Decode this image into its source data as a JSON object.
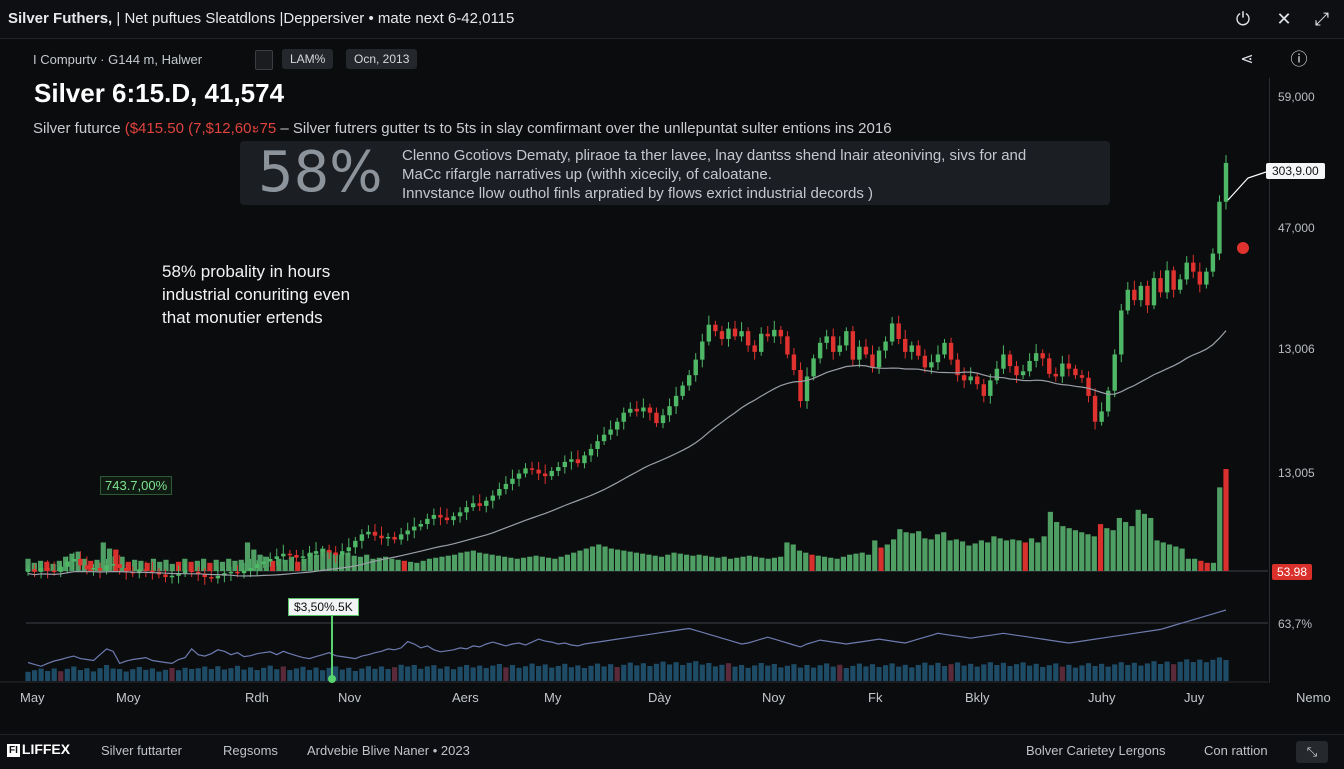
{
  "window": {
    "title_bold": "Silver Futhers,",
    "title_rest": "| Net puftues Sleatdlons  |Deppersiver • mate next 6-42,0115",
    "icons": [
      "power-icon",
      "close-icon",
      "maximize-icon"
    ]
  },
  "toolbar": {
    "left_text": "I Compurtv · G144 m, Halwer",
    "chip1": "LAM%",
    "chip2": "Ocn, 2013",
    "icons": [
      "share-icon",
      "info-icon"
    ]
  },
  "header": {
    "headline": "Silver 6:15.D, 41,574",
    "sub_prefix": "Silver futurce",
    "sub_red": "($415.50 (7,$12,60ะ75",
    "sub_suffix": "– Silver futrers gutter ts to 5ts in slay comfirmant over the unllepuntat sulter entions ins 2016"
  },
  "banner": {
    "percent": "58%",
    "line1": "Clenno Gcotiovs Dematy, pliraoe ta ther lavee, lnay dantss shend lnair ateoniving, sivs for and",
    "line2": "MaCc rifargle narratives up (withh xicecily, of caloatane.",
    "line3": "Innvstance llow outhol finls arpratied by flows exrict industrial decords )"
  },
  "annotation": {
    "line1": "58% probality in hours",
    "line2": "industrial conuriting even",
    "line3": "that monutier ertends"
  },
  "labels": {
    "price_tag": "303,9.00",
    "red_tag": "53.98",
    "green_label": "743.7,00%",
    "volume_label": "$3,50%.5K"
  },
  "footer": {
    "logo_box": "FI",
    "logo_text": "LIFFEX",
    "item1": "Silver futtarter",
    "item2": "Regsoms",
    "item3": "Ardvebie Blive Naner • 2023",
    "right1": "Bolver Carietey Lergons",
    "right2": "Con rattion",
    "button_icon": "chart-toggle-icon",
    "button_glyph": "⤡"
  },
  "chart_data": {
    "type": "candlestick",
    "colors": {
      "up": "#4fb867",
      "down": "#e0322f",
      "ma": "#9aa0a8",
      "volume_up": "#4f9e63",
      "volume_down": "#d8302c",
      "lower_bars": "#1e4c66"
    },
    "y_tick_labels": [
      "59,000",
      "47,000",
      "13,006",
      "13,005",
      "63,7%"
    ],
    "x_tick_labels": [
      "May",
      "Moy",
      "Rdh",
      "Nov",
      "Aers",
      "My",
      "Dày",
      "Noy",
      "Fk",
      "Bkly",
      "Juhy",
      "Juy",
      "Nemo"
    ],
    "close_series": [
      46,
      44,
      47,
      45,
      44,
      48,
      52,
      54,
      49,
      46,
      47,
      45,
      49,
      50,
      47,
      44,
      43,
      46,
      45,
      44,
      42,
      40,
      41,
      43,
      45,
      44,
      42,
      40,
      39,
      41,
      43,
      44,
      43,
      45,
      47,
      50,
      52,
      54,
      56,
      58,
      57,
      55,
      56,
      58,
      60,
      61,
      59,
      57,
      60,
      63,
      68,
      73,
      75,
      72,
      70,
      71,
      69,
      73,
      76,
      79,
      81,
      85,
      88,
      86,
      84,
      87,
      90,
      94,
      97,
      95,
      99,
      103,
      108,
      112,
      116,
      120,
      124,
      123,
      120,
      118,
      122,
      125,
      129,
      131,
      128,
      134,
      139,
      145,
      150,
      154,
      160,
      167,
      170,
      168,
      171,
      167,
      159,
      165,
      172,
      180,
      188,
      196,
      208,
      222,
      235,
      230,
      224,
      232,
      226,
      230,
      219,
      214,
      228,
      226,
      231,
      226,
      212,
      200,
      176,
      195,
      209,
      221,
      226,
      214,
      219,
      230,
      208,
      218,
      212,
      202,
      215,
      222,
      236,
      224,
      214,
      219,
      211,
      202,
      206,
      212,
      221,
      208,
      196,
      192,
      195,
      189,
      180,
      192,
      201,
      212,
      203,
      196,
      199,
      207,
      213,
      209,
      197,
      195,
      205,
      201,
      196,
      194,
      180,
      160,
      168,
      184,
      212,
      246,
      262,
      254,
      265,
      250,
      271,
      260,
      277,
      262,
      270,
      283,
      276,
      266,
      276,
      290,
      330,
      360
    ],
    "volume_series": [
      32,
      28,
      24,
      30,
      35,
      38,
      42,
      45,
      40,
      38,
      36,
      48,
      60,
      55,
      30,
      35,
      38,
      40,
      42,
      36,
      34,
      32,
      30,
      38,
      42,
      60,
      48,
      45,
      50,
      58,
      55,
      48,
      52,
      44,
      46,
      50,
      52,
      54,
      48,
      55,
      50,
      46,
      42,
      40,
      44,
      48,
      52,
      46,
      44,
      42,
      40,
      45,
      48,
      52,
      55,
      60,
      58,
      62,
      75,
      70,
      62,
      66,
      58,
      54,
      56,
      58,
      62,
      60,
      66,
      64,
      70,
      74,
      70,
      66,
      70,
      72,
      68,
      74,
      80,
      76,
      74,
      70,
      72,
      68,
      66,
      70,
      72,
      74,
      76,
      78,
      80,
      82,
      84,
      86,
      88,
      90,
      92,
      94,
      96,
      98,
      100,
      102,
      98,
      94,
      90,
      86,
      82,
      78,
      74,
      70,
      72,
      76,
      80,
      84,
      80,
      76,
      72,
      68,
      64,
      70,
      74,
      78,
      76,
      74,
      72,
      70,
      72,
      74,
      76,
      78,
      80,
      78,
      76,
      74,
      72,
      76,
      80,
      84,
      88,
      92,
      90,
      88,
      86,
      84,
      82,
      84,
      86,
      88,
      90,
      92,
      90,
      88,
      86,
      84,
      82,
      80,
      78,
      76,
      74,
      72,
      74,
      76,
      78,
      80,
      82,
      84,
      86,
      88,
      90,
      92,
      94,
      96,
      98,
      100,
      104,
      108,
      112,
      116,
      120,
      124,
      128,
      132,
      136,
      140
    ],
    "volume_bars": [
      {
        "v": 12,
        "up": true
      },
      {
        "v": 8,
        "up": true
      },
      {
        "v": 10,
        "up": true
      },
      {
        "v": 9,
        "up": false
      },
      {
        "v": 7,
        "up": true
      },
      {
        "v": 10,
        "up": true
      },
      {
        "v": 14,
        "up": true
      },
      {
        "v": 17,
        "up": true
      },
      {
        "v": 19,
        "up": true
      },
      {
        "v": 12,
        "up": true
      },
      {
        "v": 10,
        "up": false
      },
      {
        "v": 11,
        "up": true
      },
      {
        "v": 28,
        "up": true
      },
      {
        "v": 22,
        "up": true
      },
      {
        "v": 21,
        "up": false
      },
      {
        "v": 14,
        "up": true
      },
      {
        "v": 9,
        "up": false
      },
      {
        "v": 11,
        "up": true
      },
      {
        "v": 10,
        "up": true
      },
      {
        "v": 8,
        "up": false
      },
      {
        "v": 12,
        "up": true
      },
      {
        "v": 9,
        "up": true
      },
      {
        "v": 11,
        "up": true
      },
      {
        "v": 7,
        "up": true
      },
      {
        "v": 9,
        "up": false
      },
      {
        "v": 12,
        "up": true
      },
      {
        "v": 9,
        "up": false
      },
      {
        "v": 10,
        "up": true
      },
      {
        "v": 12,
        "up": true
      },
      {
        "v": 8,
        "up": false
      },
      {
        "v": 11,
        "up": true
      },
      {
        "v": 9,
        "up": true
      },
      {
        "v": 12,
        "up": true
      },
      {
        "v": 10,
        "up": true
      },
      {
        "v": 11,
        "up": true
      },
      {
        "v": 28,
        "up": true
      },
      {
        "v": 21,
        "up": true
      },
      {
        "v": 16,
        "up": true
      },
      {
        "v": 14,
        "up": true
      },
      {
        "v": 10,
        "up": false
      },
      {
        "v": 12,
        "up": true
      },
      {
        "v": 11,
        "up": true
      },
      {
        "v": 14,
        "up": true
      },
      {
        "v": 9,
        "up": false
      },
      {
        "v": 12,
        "up": true
      },
      {
        "v": 18,
        "up": true
      },
      {
        "v": 16,
        "up": true
      },
      {
        "v": 22,
        "up": true
      },
      {
        "v": 20,
        "up": true
      },
      {
        "v": 17,
        "up": true
      },
      {
        "v": 16,
        "up": true
      },
      {
        "v": 18,
        "up": true
      },
      {
        "v": 15,
        "up": true
      },
      {
        "v": 14,
        "up": true
      },
      {
        "v": 16,
        "up": true
      },
      {
        "v": 12,
        "up": true
      },
      {
        "v": 13,
        "up": true
      },
      {
        "v": 14,
        "up": true
      },
      {
        "v": 12,
        "up": true
      },
      {
        "v": 11,
        "up": true
      },
      {
        "v": 10,
        "up": false
      },
      {
        "v": 9,
        "up": true
      },
      {
        "v": 8,
        "up": true
      },
      {
        "v": 10,
        "up": true
      },
      {
        "v": 12,
        "up": true
      },
      {
        "v": 13,
        "up": true
      },
      {
        "v": 14,
        "up": true
      },
      {
        "v": 15,
        "up": true
      },
      {
        "v": 16,
        "up": true
      },
      {
        "v": 18,
        "up": true
      },
      {
        "v": 19,
        "up": true
      },
      {
        "v": 20,
        "up": true
      },
      {
        "v": 18,
        "up": true
      },
      {
        "v": 17,
        "up": true
      },
      {
        "v": 16,
        "up": true
      },
      {
        "v": 15,
        "up": true
      },
      {
        "v": 14,
        "up": true
      },
      {
        "v": 13,
        "up": true
      },
      {
        "v": 12,
        "up": true
      },
      {
        "v": 13,
        "up": true
      },
      {
        "v": 14,
        "up": true
      },
      {
        "v": 15,
        "up": true
      },
      {
        "v": 14,
        "up": true
      },
      {
        "v": 13,
        "up": true
      },
      {
        "v": 12,
        "up": true
      },
      {
        "v": 14,
        "up": true
      },
      {
        "v": 16,
        "up": true
      },
      {
        "v": 18,
        "up": true
      },
      {
        "v": 20,
        "up": true
      },
      {
        "v": 22,
        "up": true
      },
      {
        "v": 24,
        "up": true
      },
      {
        "v": 26,
        "up": true
      },
      {
        "v": 24,
        "up": true
      },
      {
        "v": 22,
        "up": true
      },
      {
        "v": 21,
        "up": true
      },
      {
        "v": 20,
        "up": true
      },
      {
        "v": 19,
        "up": true
      },
      {
        "v": 18,
        "up": true
      },
      {
        "v": 17,
        "up": true
      },
      {
        "v": 16,
        "up": true
      },
      {
        "v": 15,
        "up": true
      },
      {
        "v": 14,
        "up": true
      },
      {
        "v": 16,
        "up": true
      },
      {
        "v": 18,
        "up": true
      },
      {
        "v": 17,
        "up": true
      },
      {
        "v": 16,
        "up": true
      },
      {
        "v": 15,
        "up": true
      },
      {
        "v": 16,
        "up": true
      },
      {
        "v": 15,
        "up": true
      },
      {
        "v": 14,
        "up": true
      },
      {
        "v": 13,
        "up": true
      },
      {
        "v": 14,
        "up": true
      },
      {
        "v": 12,
        "up": true
      },
      {
        "v": 13,
        "up": true
      },
      {
        "v": 14,
        "up": true
      },
      {
        "v": 15,
        "up": true
      },
      {
        "v": 14,
        "up": true
      },
      {
        "v": 13,
        "up": true
      },
      {
        "v": 12,
        "up": true
      },
      {
        "v": 13,
        "up": true
      },
      {
        "v": 14,
        "up": true
      },
      {
        "v": 28,
        "up": true
      },
      {
        "v": 26,
        "up": true
      },
      {
        "v": 20,
        "up": true
      },
      {
        "v": 18,
        "up": true
      },
      {
        "v": 16,
        "up": false
      },
      {
        "v": 15,
        "up": true
      },
      {
        "v": 14,
        "up": true
      },
      {
        "v": 13,
        "up": true
      },
      {
        "v": 12,
        "up": true
      },
      {
        "v": 14,
        "up": true
      },
      {
        "v": 16,
        "up": true
      },
      {
        "v": 17,
        "up": true
      },
      {
        "v": 18,
        "up": true
      },
      {
        "v": 16,
        "up": true
      },
      {
        "v": 30,
        "up": true
      },
      {
        "v": 23,
        "up": false
      },
      {
        "v": 26,
        "up": true
      },
      {
        "v": 31,
        "up": true
      },
      {
        "v": 41,
        "up": true
      },
      {
        "v": 38,
        "up": true
      },
      {
        "v": 37,
        "up": true
      },
      {
        "v": 39,
        "up": true
      },
      {
        "v": 32,
        "up": true
      },
      {
        "v": 31,
        "up": true
      },
      {
        "v": 36,
        "up": true
      },
      {
        "v": 38,
        "up": true
      },
      {
        "v": 30,
        "up": true
      },
      {
        "v": 31,
        "up": true
      },
      {
        "v": 29,
        "up": true
      },
      {
        "v": 25,
        "up": true
      },
      {
        "v": 27,
        "up": true
      },
      {
        "v": 30,
        "up": true
      },
      {
        "v": 28,
        "up": true
      },
      {
        "v": 34,
        "up": true
      },
      {
        "v": 32,
        "up": true
      },
      {
        "v": 30,
        "up": true
      },
      {
        "v": 31,
        "up": true
      },
      {
        "v": 30,
        "up": true
      },
      {
        "v": 28,
        "up": false
      },
      {
        "v": 32,
        "up": true
      },
      {
        "v": 28,
        "up": true
      },
      {
        "v": 34,
        "up": true
      },
      {
        "v": 58,
        "up": true
      },
      {
        "v": 48,
        "up": true
      },
      {
        "v": 44,
        "up": true
      },
      {
        "v": 42,
        "up": true
      },
      {
        "v": 40,
        "up": true
      },
      {
        "v": 38,
        "up": true
      },
      {
        "v": 36,
        "up": true
      },
      {
        "v": 34,
        "up": true
      },
      {
        "v": 46,
        "up": false
      },
      {
        "v": 42,
        "up": true
      },
      {
        "v": 40,
        "up": true
      },
      {
        "v": 52,
        "up": true
      },
      {
        "v": 48,
        "up": true
      },
      {
        "v": 44,
        "up": true
      },
      {
        "v": 60,
        "up": true
      },
      {
        "v": 56,
        "up": true
      },
      {
        "v": 52,
        "up": true
      },
      {
        "v": 30,
        "up": true
      },
      {
        "v": 28,
        "up": true
      },
      {
        "v": 26,
        "up": true
      },
      {
        "v": 24,
        "up": true
      },
      {
        "v": 22,
        "up": true
      },
      {
        "v": 12,
        "up": true
      },
      {
        "v": 12,
        "up": true
      },
      {
        "v": 10,
        "up": false
      },
      {
        "v": 8,
        "up": false
      },
      {
        "v": 8,
        "up": true
      },
      {
        "v": 82,
        "up": true
      },
      {
        "v": 100,
        "up": false
      }
    ]
  }
}
